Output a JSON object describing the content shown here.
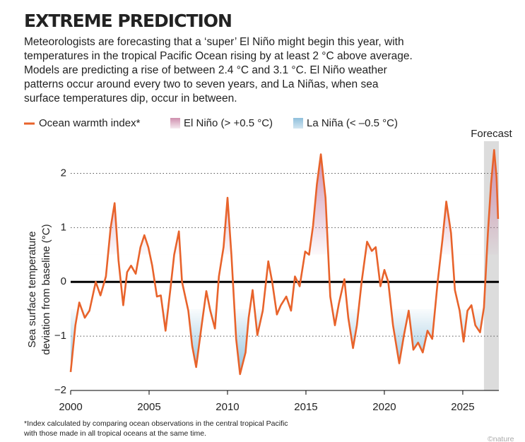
{
  "chart_data": {
    "type": "line",
    "title": "EXTREME PREDICTION",
    "subtitle": [
      "Meteorologists are forecasting that a ‘super’ El Niño might begin this year, with",
      "temperatures in the tropical Pacific Ocean rising by at least 2 °C above average.",
      "Models are predicting a rise of between 2.4 °C and 3.1 °C. El Niño weather",
      "patterns occur around every two to seven years, and La Niñas, when sea",
      "surface temperatures dip, occur in between."
    ],
    "ylabel": [
      "Sea surface temperature",
      "deviation from baseline (°C)"
    ],
    "footnote": [
      "*Index calculated by comparing ocean observations in the central tropical Pacific",
      "with those made in all tropical oceans at the same time."
    ],
    "source": "©nature",
    "forecast_label": "Forecast",
    "forecast_range": [
      2026.35,
      2027.3
    ],
    "forecast_color": "#dcdcdc",
    "el_nino": {
      "name": "El Niño (> +0.5 °C)",
      "threshold": 0.5,
      "color": "#cf8fae"
    },
    "la_nina": {
      "name": "La Niña (< –0.5 °C)",
      "threshold": -0.5,
      "color": "#8fc0dc"
    },
    "xlim": [
      2000,
      2027.3
    ],
    "xticks": [
      2000,
      2005,
      2010,
      2015,
      2020,
      2025
    ],
    "ylim": [
      -2,
      2.5
    ],
    "yticks": [
      {
        "value": -2,
        "label": "−2"
      },
      {
        "value": -1,
        "label": "−1"
      },
      0,
      1,
      2
    ],
    "grid": true,
    "series": [
      {
        "name": "Ocean warmth index*",
        "color": "#e8632b",
        "x": [
          2000.0,
          2000.3,
          2000.55,
          2000.9,
          2001.2,
          2001.6,
          2001.9,
          2002.25,
          2002.55,
          2002.8,
          2003.05,
          2003.35,
          2003.6,
          2003.85,
          2004.15,
          2004.45,
          2004.7,
          2004.95,
          2005.2,
          2005.5,
          2005.75,
          2006.05,
          2006.35,
          2006.6,
          2006.9,
          2007.1,
          2007.5,
          2007.75,
          2008.0,
          2008.35,
          2008.65,
          2008.9,
          2009.2,
          2009.45,
          2009.75,
          2010.0,
          2010.25,
          2010.55,
          2010.8,
          2011.15,
          2011.35,
          2011.6,
          2011.9,
          2012.25,
          2012.6,
          2012.85,
          2013.15,
          2013.4,
          2013.75,
          2014.05,
          2014.3,
          2014.6,
          2014.95,
          2015.2,
          2015.45,
          2015.7,
          2015.95,
          2016.25,
          2016.55,
          2016.85,
          2017.1,
          2017.45,
          2017.7,
          2018.0,
          2018.25,
          2018.55,
          2018.9,
          2019.2,
          2019.45,
          2019.75,
          2020.0,
          2020.25,
          2020.55,
          2020.95,
          2021.25,
          2021.55,
          2021.85,
          2022.15,
          2022.45,
          2022.75,
          2023.05,
          2023.4,
          2023.7,
          2023.95,
          2024.25,
          2024.5,
          2024.8,
          2025.05,
          2025.3,
          2025.55,
          2025.8,
          2026.1,
          2026.35,
          2026.6,
          2026.8,
          2027.0,
          2027.15,
          2027.25
        ],
        "values": [
          -1.66,
          -0.8,
          -0.38,
          -0.66,
          -0.53,
          0,
          -0.25,
          0.1,
          1.0,
          1.45,
          0.4,
          -0.43,
          0.18,
          0.3,
          0.15,
          0.64,
          0.86,
          0.64,
          0.3,
          -0.27,
          -0.25,
          -0.9,
          -0.15,
          0.5,
          0.93,
          0,
          -0.53,
          -1.18,
          -1.57,
          -0.8,
          -0.17,
          -0.53,
          -0.86,
          0.1,
          0.64,
          1.55,
          0.5,
          -1.05,
          -1.7,
          -1.3,
          -0.66,
          -0.15,
          -0.98,
          -0.53,
          0.38,
          0,
          -0.6,
          -0.43,
          -0.27,
          -0.53,
          0.1,
          -0.08,
          0.56,
          0.5,
          1.03,
          1.8,
          2.35,
          1.55,
          -0.27,
          -0.8,
          -0.4,
          0.05,
          -0.66,
          -1.22,
          -0.8,
          0,
          0.74,
          0.57,
          0.64,
          -0.08,
          0.22,
          0,
          -0.8,
          -1.5,
          -0.98,
          -0.53,
          -1.25,
          -1.12,
          -1.3,
          -0.9,
          -1.05,
          0,
          0.77,
          1.48,
          0.9,
          -0.15,
          -0.53,
          -1.1,
          -0.53,
          -0.43,
          -0.8,
          -0.93,
          -0.47,
          0.9,
          1.8,
          2.43,
          1.93,
          1.16
        ]
      }
    ]
  }
}
